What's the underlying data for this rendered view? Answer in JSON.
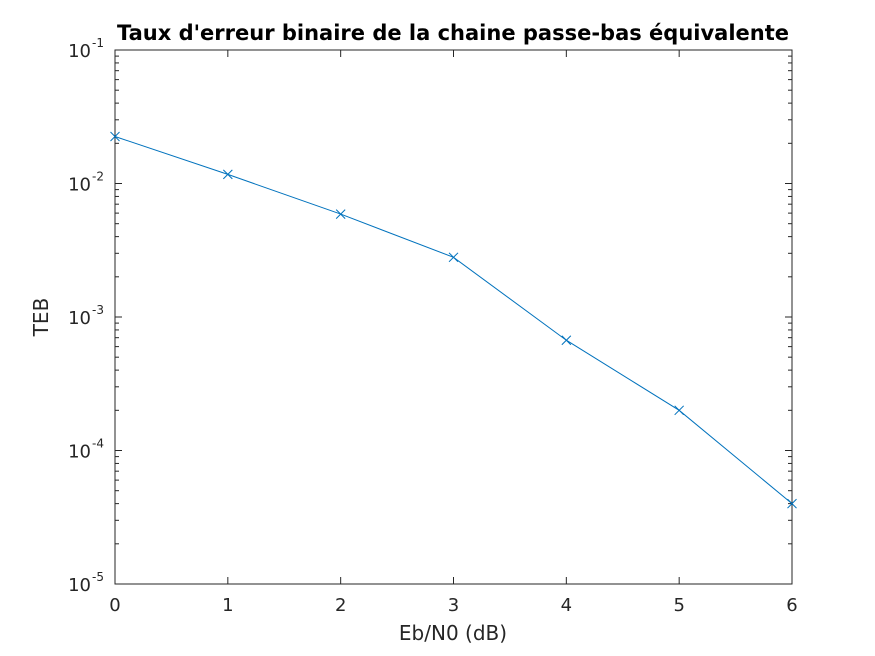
{
  "chart_data": {
    "type": "line",
    "title": "Taux d'erreur binaire de la chaine passe-bas équivalente",
    "xlabel": "Eb/N0 (dB)",
    "ylabel": "TEB",
    "xlim": [
      0,
      6
    ],
    "ylim": [
      1e-05,
      0.1
    ],
    "yscale": "log",
    "grid": false,
    "x_ticks": [
      "0",
      "1",
      "2",
      "3",
      "4",
      "5",
      "6"
    ],
    "y_ticks": [
      {
        "value": 0.1,
        "base": "10",
        "exp": "-1"
      },
      {
        "value": 0.01,
        "base": "10",
        "exp": "-2"
      },
      {
        "value": 0.001,
        "base": "10",
        "exp": "-3"
      },
      {
        "value": 0.0001,
        "base": "10",
        "exp": "-4"
      },
      {
        "value": 1e-05,
        "base": "10",
        "exp": "-5"
      }
    ],
    "series": [
      {
        "color": "#0072bd",
        "marker": "x",
        "x": [
          0,
          1,
          2,
          3,
          4,
          5,
          6
        ],
        "y": [
          0.0225,
          0.0117,
          0.0059,
          0.0028,
          0.00067,
          0.0002,
          4e-05
        ]
      }
    ]
  }
}
